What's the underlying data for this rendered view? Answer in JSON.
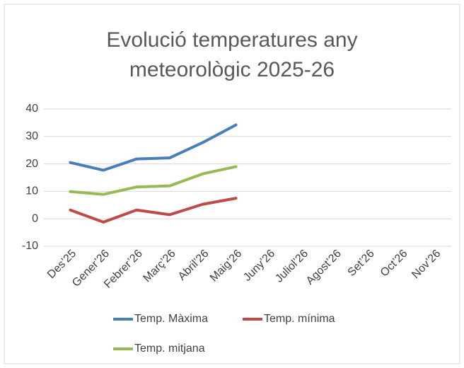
{
  "chart_data": {
    "type": "line",
    "title": "Evolució temperatures any meteorològic 2025-26",
    "categories": [
      "Des’25",
      "Gener’26",
      "Febrer’26",
      "Març’26",
      "Abril’26",
      "Maig’26",
      "Juny’26",
      "Juliol’26",
      "Agost’26",
      "Set’26",
      "Oct’26",
      "Nov’26"
    ],
    "series": [
      {
        "name": "Temp. Màxima",
        "color": "#4a7ebb",
        "values": [
          20.5,
          17.7,
          21.8,
          22.2,
          27.8,
          34.2,
          null,
          null,
          null,
          null,
          null,
          null
        ]
      },
      {
        "name": "Temp. mínima",
        "color": "#be4b48",
        "values": [
          3.2,
          -1.2,
          3.2,
          1.5,
          5.3,
          7.5,
          null,
          null,
          null,
          null,
          null,
          null
        ]
      },
      {
        "name": "Temp. mitjana",
        "color": "#98b954",
        "values": [
          9.9,
          8.9,
          11.6,
          12.0,
          16.4,
          19.0,
          null,
          null,
          null,
          null,
          null,
          null
        ]
      }
    ],
    "ylim": [
      -10,
      40
    ],
    "yticks": [
      -10,
      0,
      10,
      20,
      30,
      40
    ],
    "grid": true,
    "legend": "bottom"
  }
}
